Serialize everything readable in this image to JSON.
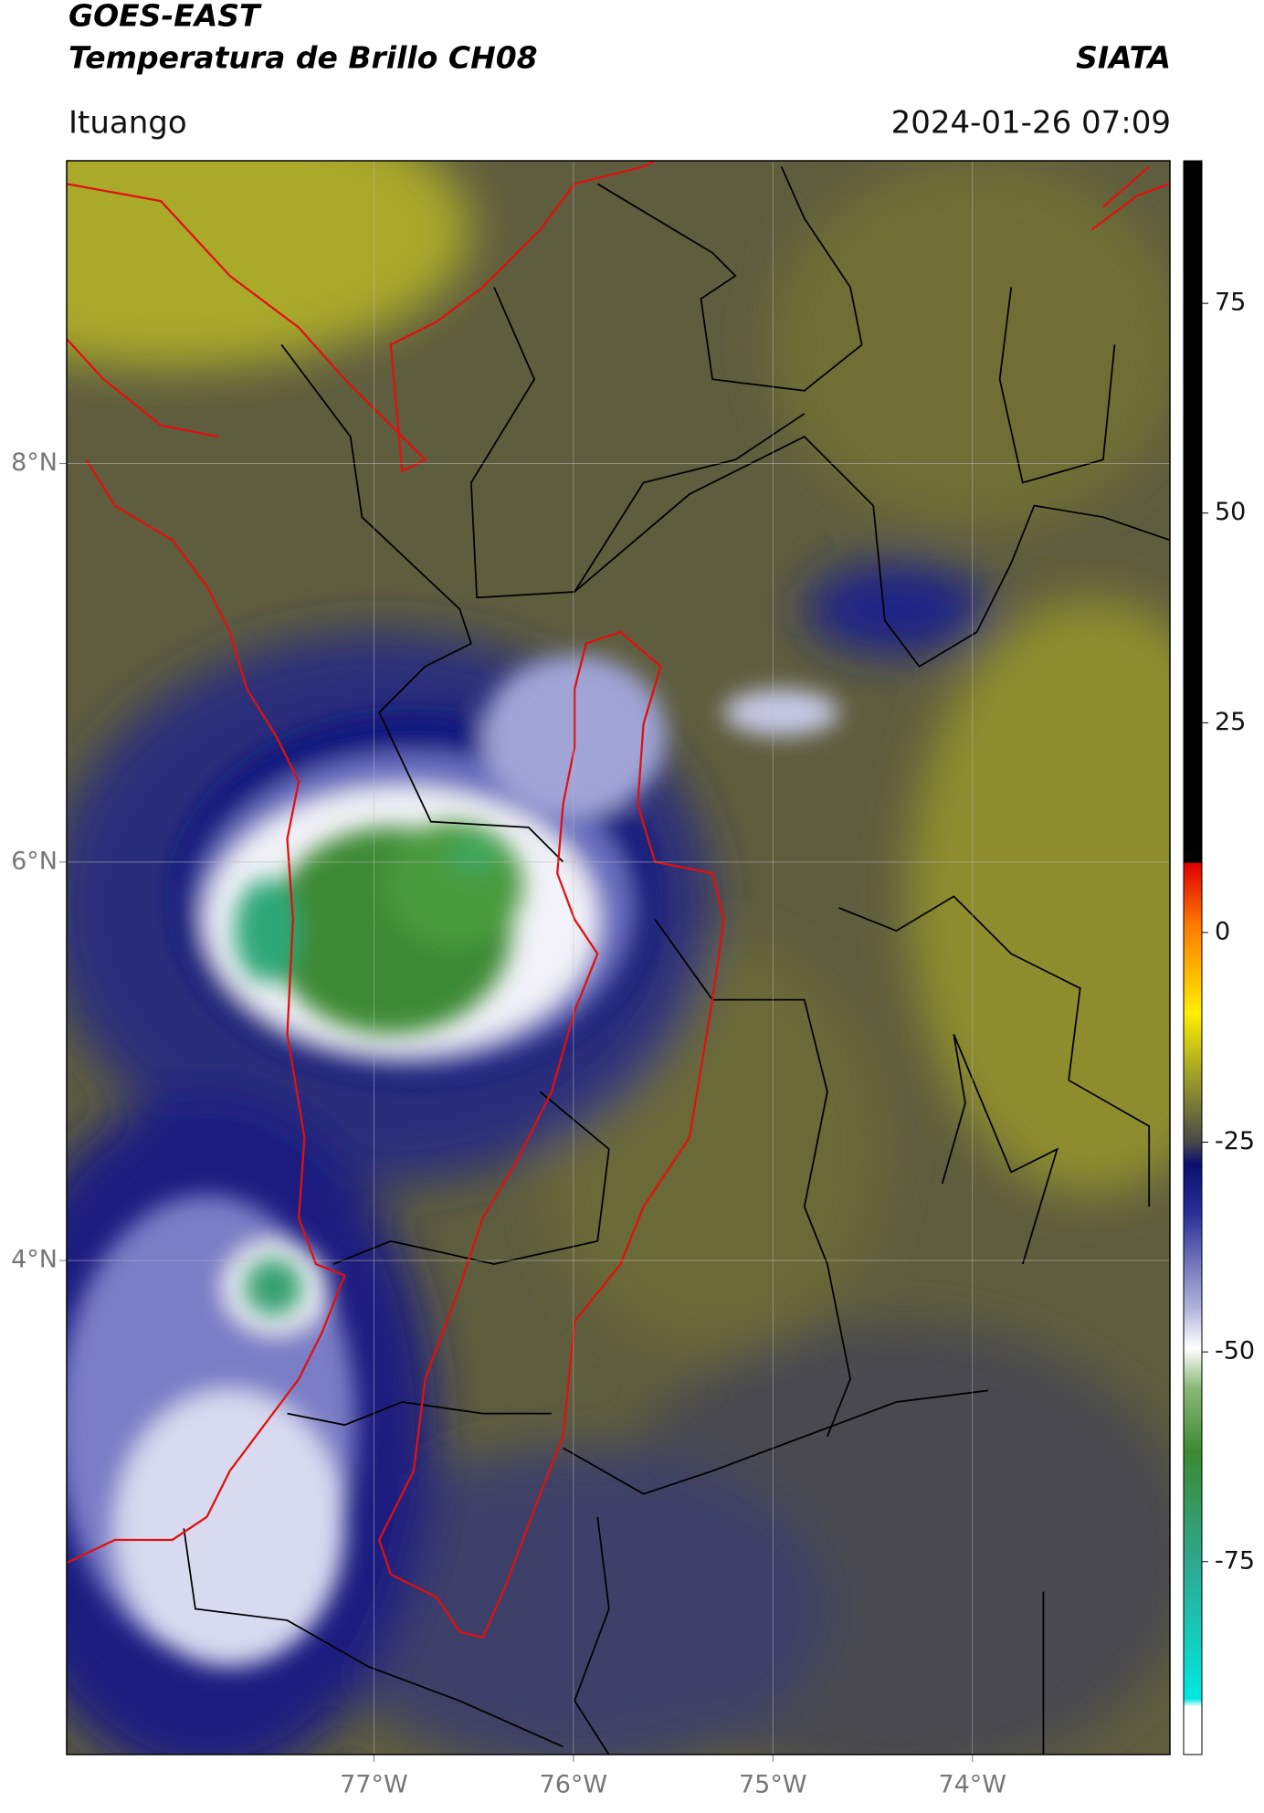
{
  "header": {
    "satellite": "GOES-EAST",
    "product": "Temperatura de Brillo CH08",
    "institution": "SIATA",
    "region": "Ituango",
    "datetime": "2024-01-26 07:09"
  },
  "map": {
    "xlim": [
      -78.54,
      -73.01
    ],
    "ylim": [
      1.52,
      9.52
    ],
    "xticks": [
      {
        "value": -77,
        "label": "77°W"
      },
      {
        "value": -76,
        "label": "76°W"
      },
      {
        "value": -75,
        "label": "75°W"
      },
      {
        "value": -74,
        "label": "74°W"
      }
    ],
    "yticks": [
      {
        "value": 8,
        "label": "8°N"
      },
      {
        "value": 6,
        "label": "6°N"
      },
      {
        "value": 4,
        "label": "4°N"
      }
    ],
    "grid": true
  },
  "colorbar": {
    "lim": [
      -98,
      92
    ],
    "ticks": [
      75,
      50,
      25,
      0,
      -25,
      -50,
      -75
    ]
  }
}
